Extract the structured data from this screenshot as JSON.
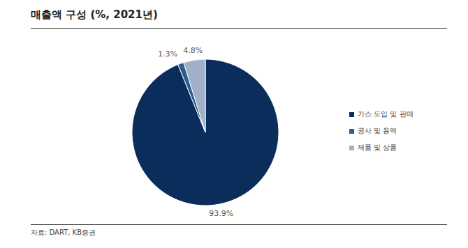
{
  "chart_data": {
    "type": "pie",
    "title": "매출액 구성 (%, 2021년)",
    "categories": [
      "가스 도입 및 판매",
      "공사 및 용역",
      "제품 및 상품"
    ],
    "values": [
      93.9,
      1.3,
      4.8
    ],
    "value_labels": [
      "93.9%",
      "1.3%",
      "4.8%"
    ],
    "colors": [
      "#0b2d5b",
      "#2c5f8f",
      "#a0b0c8"
    ],
    "data_labels": true,
    "legend": "right",
    "source": "자료: DART, KB증권"
  }
}
